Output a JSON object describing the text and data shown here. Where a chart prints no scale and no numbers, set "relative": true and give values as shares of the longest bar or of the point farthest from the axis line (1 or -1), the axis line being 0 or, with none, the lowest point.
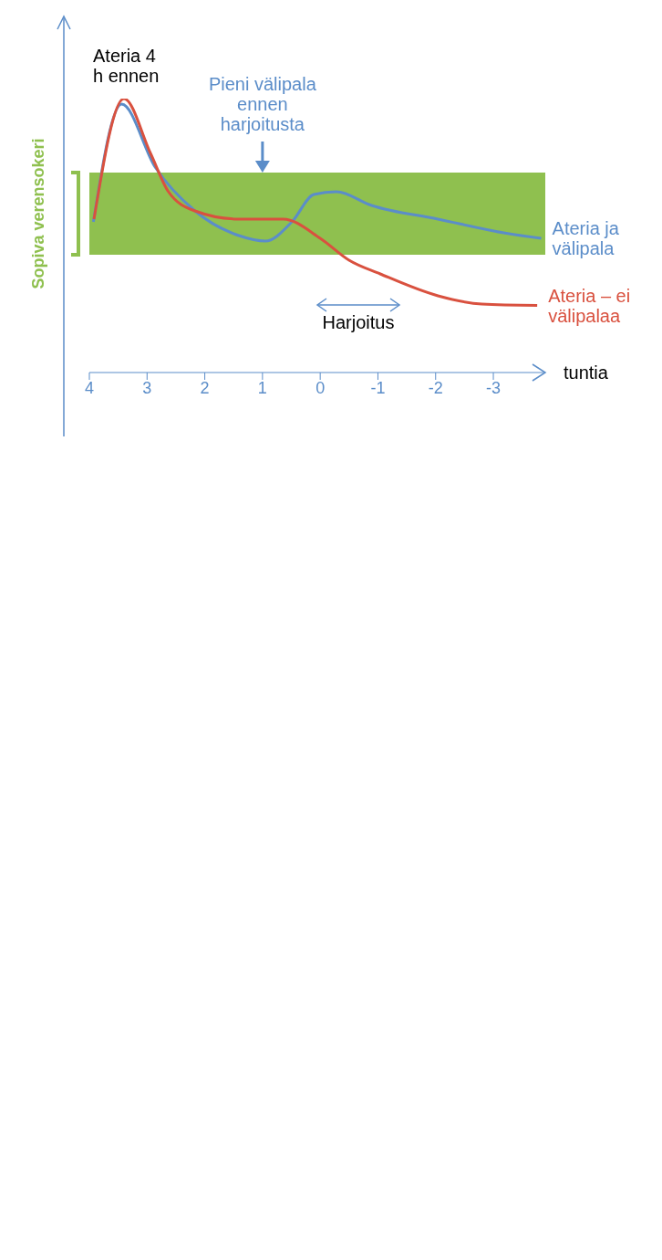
{
  "chart_data": {
    "type": "line",
    "relative": true,
    "xlabel": "tuntia",
    "xlim": [
      4,
      -3.9
    ],
    "xticks": [
      4,
      3,
      2,
      1,
      0,
      -1,
      -2,
      -3
    ],
    "series": [
      {
        "name": "Ateria ja välipala",
        "color": "#5b8dc9",
        "x": [
          3.93,
          3.44,
          2.86,
          2.17,
          1.41,
          0.95,
          0.49,
          0.11,
          -0.28,
          -0.89,
          -2.04,
          -3.18,
          -3.83
        ],
        "values": [
          0.55,
          0.98,
          0.75,
          0.59,
          0.5,
          0.48,
          0.55,
          0.65,
          0.66,
          0.61,
          0.56,
          0.51,
          0.49
        ]
      },
      {
        "name": "Ateria – ei välipalaa",
        "color": "#d9513f",
        "x": [
          3.92,
          3.4,
          2.94,
          2.63,
          2.17,
          1.41,
          0.64,
          0,
          -0.5,
          -1.04,
          -2.04,
          -2.8,
          -3.76
        ],
        "values": [
          0.56,
          1,
          0.8,
          0.66,
          0.59,
          0.56,
          0.56,
          0.49,
          0.41,
          0.36,
          0.28,
          0.25,
          0.245
        ]
      }
    ],
    "bands": [
      {
        "axis": "y",
        "from": 0.43,
        "to": 0.73,
        "label": "Sopiva verensokeri",
        "color": "#8fc04f"
      }
    ],
    "annotations": [
      "Ateria 4 h ennen",
      {
        "text": "Pieni välipala ennen harjoitusta",
        "x": 1,
        "y": 0.73
      },
      "Harjoitus"
    ],
    "marker": "none",
    "line_style": "solid"
  }
}
